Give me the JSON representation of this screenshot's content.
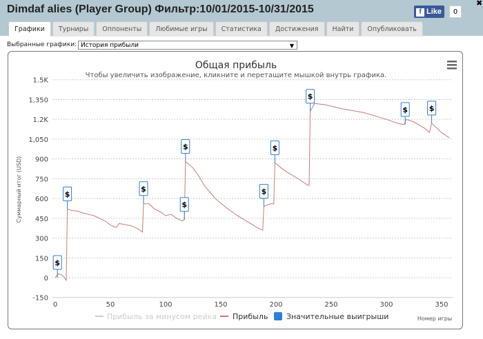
{
  "window": {
    "title": "Dimdaf alies (Player Group) Фильтр:10/01/2015-10/31/2015",
    "like_label": "Like",
    "like_count": "0",
    "close": "✖"
  },
  "tabs": [
    "Графики",
    "Турниры",
    "Оппоненты",
    "Любимые игры",
    "Статистика",
    "Достижения",
    "Найти",
    "Опубликовать"
  ],
  "selector": {
    "label": "Выбранные графики:",
    "value": "История прибыли",
    "arrow": "▼"
  },
  "menu_icon": "hamburger-icon",
  "chart_data": {
    "type": "line",
    "title": "Общая прибыль",
    "subtitle": "Чтобы увеличить изображение, кликните и перетащите мышкой внутрь графика.",
    "xlabel": "Номер игры",
    "ylabel": "Суммарный итог (USD)",
    "xlim": [
      0,
      360
    ],
    "ylim": [
      -150,
      1500
    ],
    "xticks": [
      "0",
      "50",
      "100",
      "150",
      "200",
      "250",
      "300",
      "350"
    ],
    "xtick_values": [
      0,
      50,
      100,
      150,
      200,
      250,
      300,
      350
    ],
    "yticks": [
      "1.5K",
      "1,350",
      "1.2K",
      "1,050",
      "900",
      "750",
      "600",
      "450",
      "300",
      "150",
      "0",
      "-150"
    ],
    "ytick_values": [
      1500,
      1350,
      1200,
      1050,
      900,
      750,
      600,
      450,
      300,
      150,
      0,
      -150
    ],
    "legend": [
      "Прибыль за минусом рейка",
      "Прибыль",
      "Значительные выигрыши"
    ],
    "colors": {
      "profit": "#c97b7b",
      "rake": "#cccccc",
      "wins": "#2f7ed8"
    },
    "series": [
      {
        "name": "Прибыль",
        "points": [
          [
            0,
            0
          ],
          [
            3,
            30
          ],
          [
            6,
            20
          ],
          [
            8,
            5
          ],
          [
            10,
            -20
          ],
          [
            11,
            520
          ],
          [
            15,
            510
          ],
          [
            20,
            505
          ],
          [
            25,
            490
          ],
          [
            30,
            480
          ],
          [
            35,
            470
          ],
          [
            40,
            450
          ],
          [
            45,
            430
          ],
          [
            50,
            400
          ],
          [
            55,
            380
          ],
          [
            58,
            410
          ],
          [
            65,
            400
          ],
          [
            70,
            390
          ],
          [
            75,
            370
          ],
          [
            79,
            345
          ],
          [
            80,
            560
          ],
          [
            85,
            560
          ],
          [
            90,
            520
          ],
          [
            95,
            500
          ],
          [
            100,
            470
          ],
          [
            105,
            480
          ],
          [
            110,
            450
          ],
          [
            115,
            430
          ],
          [
            117,
            440
          ],
          [
            118,
            880
          ],
          [
            125,
            830
          ],
          [
            130,
            770
          ],
          [
            135,
            700
          ],
          [
            140,
            650
          ],
          [
            145,
            600
          ],
          [
            155,
            530
          ],
          [
            165,
            470
          ],
          [
            175,
            420
          ],
          [
            185,
            370
          ],
          [
            188,
            360
          ],
          [
            189,
            540
          ],
          [
            195,
            560
          ],
          [
            198,
            560
          ],
          [
            199,
            870
          ],
          [
            205,
            830
          ],
          [
            210,
            800
          ],
          [
            220,
            750
          ],
          [
            229,
            700
          ],
          [
            230,
            700
          ],
          [
            231,
            1260
          ],
          [
            235,
            1320
          ],
          [
            245,
            1310
          ],
          [
            260,
            1280
          ],
          [
            280,
            1250
          ],
          [
            300,
            1200
          ],
          [
            310,
            1170
          ],
          [
            316,
            1160
          ],
          [
            318,
            1200
          ],
          [
            325,
            1180
          ],
          [
            335,
            1130
          ],
          [
            339,
            1100
          ],
          [
            341,
            1170
          ],
          [
            350,
            1100
          ],
          [
            357,
            1060
          ]
        ]
      }
    ],
    "markers": {
      "name": "Значительные выигрыши",
      "label": "$",
      "games": [
        [
          2,
          0
        ],
        [
          11,
          520
        ],
        [
          80,
          560
        ],
        [
          117,
          440
        ],
        [
          118,
          880
        ],
        [
          189,
          540
        ],
        [
          199,
          870
        ],
        [
          231,
          1260
        ],
        [
          317,
          1160
        ],
        [
          341,
          1170
        ]
      ]
    }
  }
}
